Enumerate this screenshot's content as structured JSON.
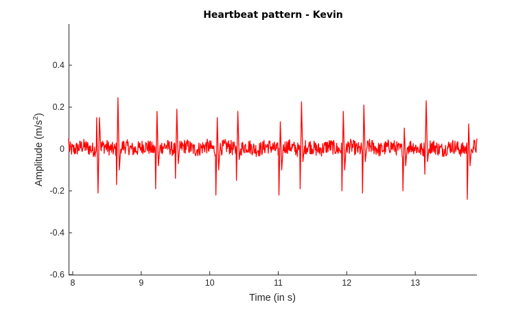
{
  "chart_data": {
    "type": "line",
    "title": "Heartbeat pattern - Kevin",
    "xlabel": "Time (in s)",
    "ylabel": "Amplitude (m/s",
    "ylabel_superscript": "2",
    "ylabel_suffix": ")",
    "xlim": [
      7.94,
      13.9
    ],
    "ylim": [
      -0.6,
      0.6
    ],
    "xticks": [
      8,
      9,
      10,
      11,
      12,
      13
    ],
    "xtick_labels": [
      "8",
      "9",
      "10",
      "11",
      "12",
      "13"
    ],
    "yticks": [
      -0.6,
      -0.4,
      -0.2,
      0,
      0.2,
      0.4
    ],
    "ytick_labels": [
      "-0.6",
      "-0.4",
      "-0.2",
      "0",
      "0.2",
      "0.4"
    ],
    "grid": false,
    "line_color": "#ff0000",
    "series": [
      {
        "x": [
          7.94,
          8.35,
          8.37,
          8.39,
          8.41,
          8.64,
          8.66,
          8.68,
          8.7,
          9.21,
          9.23,
          9.25,
          9.27,
          9.5,
          9.52,
          9.54,
          9.56,
          10.09,
          10.11,
          10.13,
          10.15,
          10.39,
          10.41,
          10.43,
          10.45,
          11.01,
          11.03,
          11.05,
          11.07,
          11.32,
          11.34,
          11.36,
          11.38,
          11.93,
          11.95,
          11.97,
          11.99,
          12.23,
          12.25,
          12.27,
          12.29,
          12.82,
          12.84,
          12.86,
          12.88,
          13.14,
          13.16,
          13.18,
          13.2,
          13.76,
          13.78,
          13.8,
          13.82,
          13.9
        ],
        "y": [
          0.05,
          0.15,
          -0.21,
          0.15,
          0.0,
          -0.17,
          0.245,
          -0.1,
          0.0,
          -0.19,
          0.18,
          -0.08,
          0.0,
          -0.14,
          0.19,
          -0.07,
          0.0,
          -0.22,
          0.15,
          -0.1,
          0.0,
          -0.15,
          0.18,
          -0.05,
          0.0,
          -0.22,
          0.13,
          -0.1,
          0.0,
          -0.19,
          0.225,
          -0.06,
          0.0,
          -0.2,
          0.18,
          -0.1,
          0.0,
          -0.21,
          0.21,
          -0.06,
          0.0,
          -0.2,
          0.1,
          -0.08,
          0.0,
          -0.12,
          0.23,
          -0.06,
          0.0,
          -0.24,
          0.12,
          -0.08,
          0.0,
          0.05
        ]
      }
    ]
  }
}
